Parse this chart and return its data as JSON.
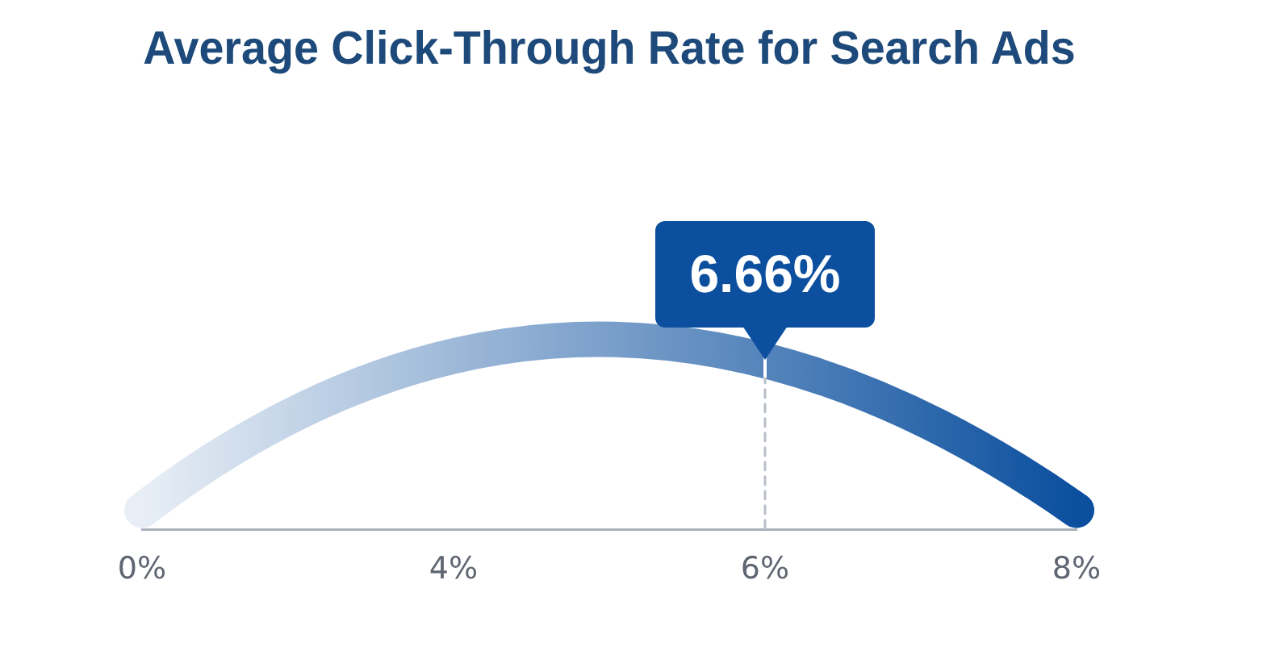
{
  "chart_data": {
    "type": "other",
    "title": "Average Click-Through Rate for Search Ads",
    "categories": [
      "0%",
      "4%",
      "6%",
      "8%"
    ],
    "values": [
      null,
      null,
      6.66,
      null
    ],
    "value_labels": [
      null,
      null,
      "6.66%",
      null
    ],
    "color": "#0b4f9e"
  }
}
